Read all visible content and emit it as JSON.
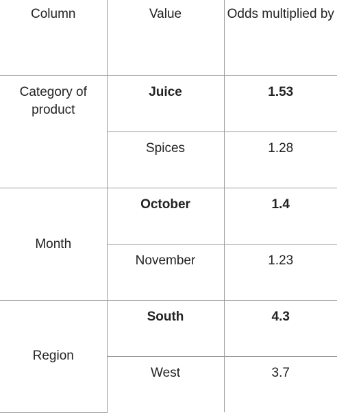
{
  "table": {
    "headers": [
      "Column",
      "Value",
      "Odds multiplied by"
    ],
    "groups": [
      {
        "column": "Category of product",
        "rows": [
          {
            "value": "Juice",
            "odds": "1.53",
            "bold": true
          },
          {
            "value": "Spices",
            "odds": "1.28",
            "bold": false
          }
        ]
      },
      {
        "column": "Month",
        "rows": [
          {
            "value": "October",
            "odds": "1.4",
            "bold": true
          },
          {
            "value": "November",
            "odds": "1.23",
            "bold": false
          }
        ]
      },
      {
        "column": "Region",
        "rows": [
          {
            "value": "South",
            "odds": "4.3",
            "bold": true
          },
          {
            "value": "West",
            "odds": "3.7",
            "bold": false
          }
        ]
      }
    ]
  }
}
